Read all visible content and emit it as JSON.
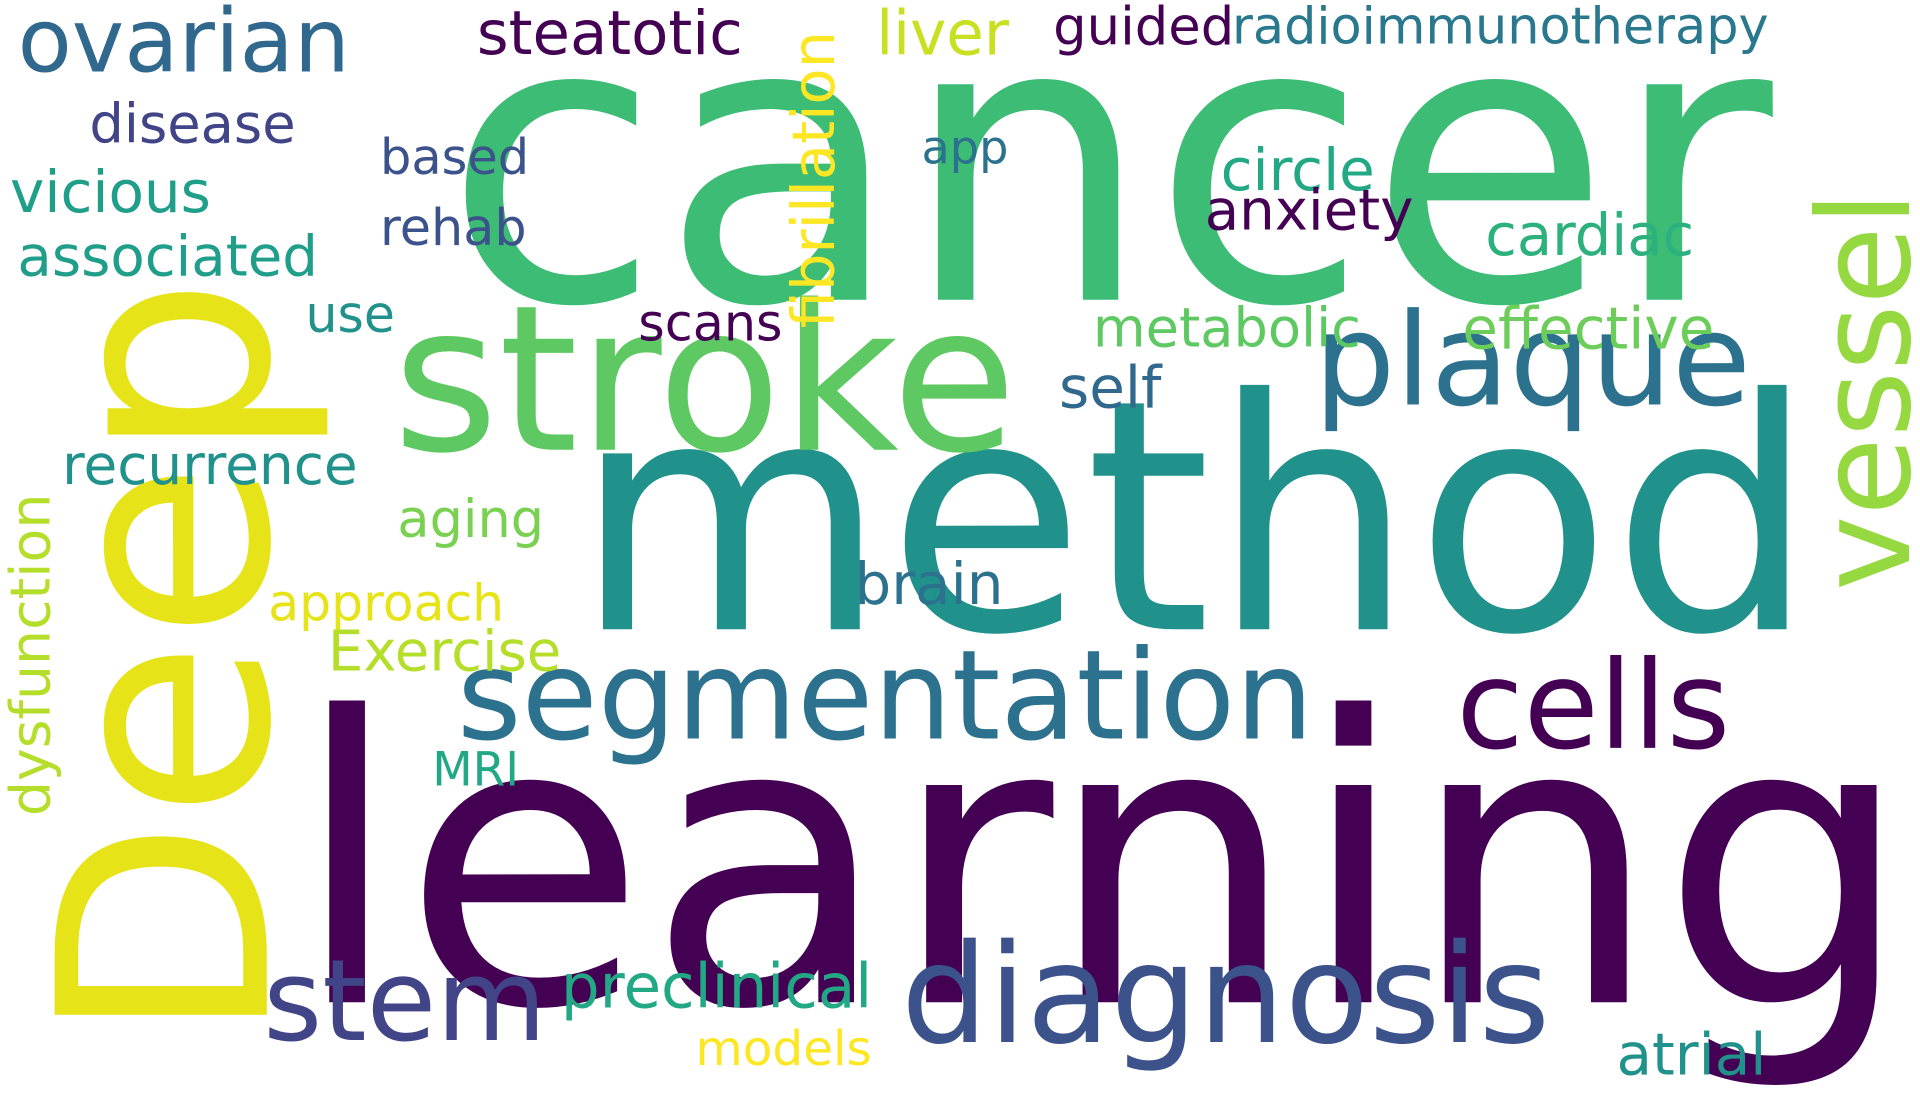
{
  "cloud": {
    "background": "#ffffff",
    "palette": {
      "dark_purple": "#440154",
      "indigo": "#3b528b",
      "teal": "#21918c",
      "green": "#3cbc75",
      "lime": "#8fd744",
      "yellow": "#e6e418"
    },
    "words": [
      {
        "text": "cancer",
        "color": "#3cbc75"
      },
      {
        "text": "learning",
        "color": "#440154"
      },
      {
        "text": "Deep",
        "color": "#e6e418"
      },
      {
        "text": "method",
        "color": "#21918c"
      },
      {
        "text": "stroke",
        "color": "#5ec962"
      },
      {
        "text": "segmentation",
        "color": "#2c728e"
      },
      {
        "text": "diagnosis",
        "color": "#3b528b"
      },
      {
        "text": "cells",
        "color": "#440154"
      },
      {
        "text": "plaque",
        "color": "#2c728e"
      },
      {
        "text": "vessel",
        "color": "#95d840"
      },
      {
        "text": "stem",
        "color": "#414487"
      },
      {
        "text": "ovarian",
        "color": "#31688e"
      },
      {
        "text": "steatotic",
        "color": "#440154"
      },
      {
        "text": "fibrillation",
        "color": "#fde725"
      },
      {
        "text": "liver",
        "color": "#c8e020"
      },
      {
        "text": "guided",
        "color": "#440154"
      },
      {
        "text": "radioimmunotherapy",
        "color": "#2a788e"
      },
      {
        "text": "disease",
        "color": "#414487"
      },
      {
        "text": "based",
        "color": "#3b528b"
      },
      {
        "text": "app",
        "color": "#2c728e"
      },
      {
        "text": "circle",
        "color": "#22a884"
      },
      {
        "text": "vicious",
        "color": "#1f9e89"
      },
      {
        "text": "rehab",
        "color": "#3b528b"
      },
      {
        "text": "anxiety",
        "color": "#440154"
      },
      {
        "text": "cardiac",
        "color": "#2cb17e"
      },
      {
        "text": "associated",
        "color": "#1f9e89"
      },
      {
        "text": "use",
        "color": "#21918c"
      },
      {
        "text": "scans",
        "color": "#440154"
      },
      {
        "text": "metabolic",
        "color": "#5ec962"
      },
      {
        "text": "effective",
        "color": "#6ccd5a"
      },
      {
        "text": "self",
        "color": "#31688e"
      },
      {
        "text": "recurrence",
        "color": "#21918c"
      },
      {
        "text": "aging",
        "color": "#7ad151"
      },
      {
        "text": "brain",
        "color": "#2c728e"
      },
      {
        "text": "approach",
        "color": "#e6e418"
      },
      {
        "text": "Exercise",
        "color": "#b5de2b"
      },
      {
        "text": "dysfunction",
        "color": "#b5de2b"
      },
      {
        "text": "MRI",
        "color": "#22a884"
      },
      {
        "text": "preclinical",
        "color": "#22a884"
      },
      {
        "text": "models",
        "color": "#fde725"
      },
      {
        "text": "atrial",
        "color": "#21918c"
      }
    ]
  }
}
